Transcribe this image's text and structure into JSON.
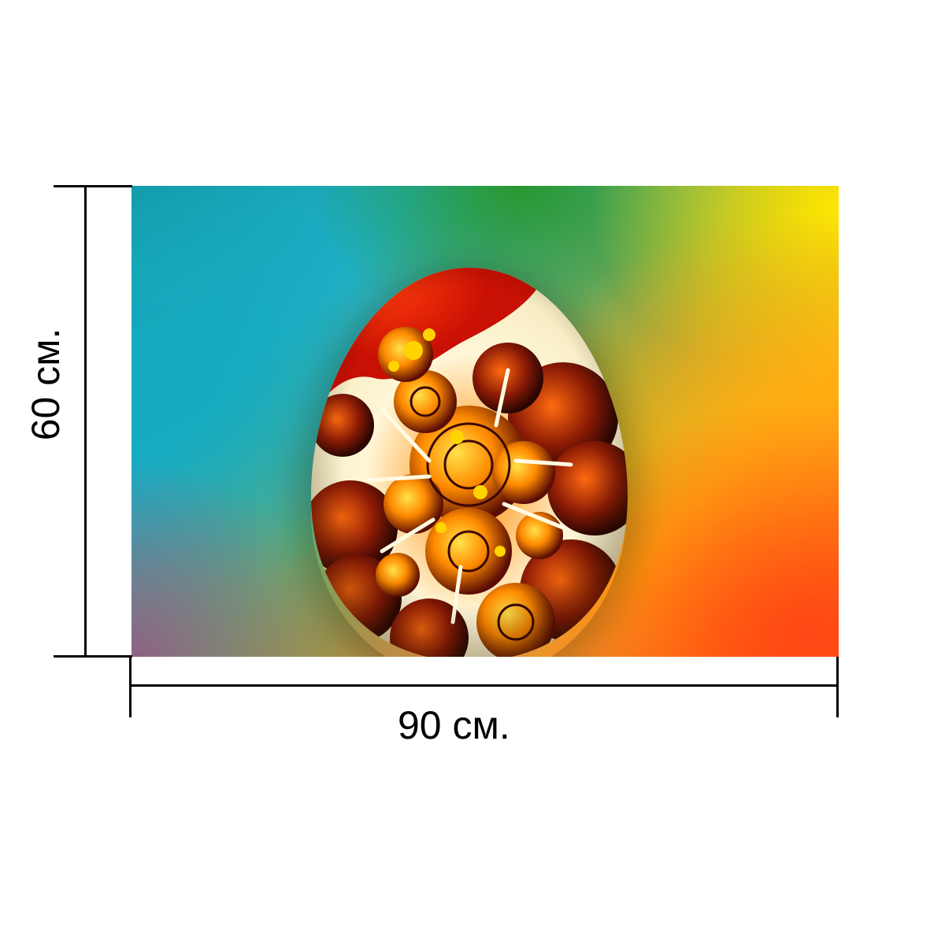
{
  "product": {
    "width_label": "90 см.",
    "height_label": "60 см."
  },
  "image": {
    "subject": "fractal-easter-egg",
    "background_colors": [
      "#139aa7",
      "#2ab4cc",
      "#3c9a1c",
      "#ffe600",
      "#ff9a14",
      "#ff5a14",
      "#b0607a"
    ],
    "egg_colors": [
      "#e11a06",
      "#ffd400",
      "#ff7a00",
      "#5a0d05",
      "#fffbe3"
    ]
  }
}
